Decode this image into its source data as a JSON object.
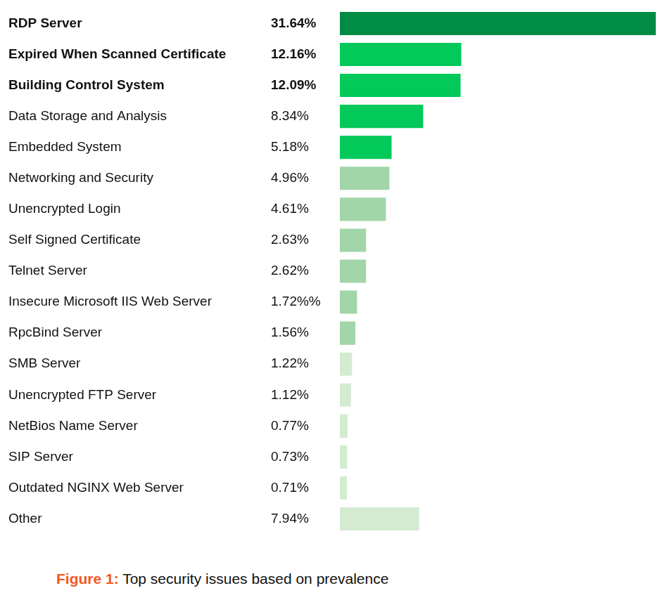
{
  "chart_data": {
    "type": "bar",
    "orientation": "horizontal",
    "title": "Top security issues based on prevalence",
    "figure_label": "Figure 1:",
    "categories": [
      "RDP Server",
      "Expired When Scanned Certificate",
      "Building Control System",
      "Data Storage and Analysis",
      "Embedded System",
      "Networking and Security",
      "Unencrypted Login",
      "Self Signed Certificate",
      "Telnet Server",
      "Insecure Microsoft IIS Web Server",
      "RpcBind Server",
      "SMB Server",
      "Unencrypted FTP Server",
      "NetBios Name Server",
      "SIP Server",
      "Outdated NGINX Web Server",
      "Other"
    ],
    "values": [
      31.64,
      12.16,
      12.09,
      8.34,
      5.18,
      4.96,
      4.61,
      2.63,
      2.62,
      1.72,
      1.56,
      1.22,
      1.12,
      0.77,
      0.73,
      0.71,
      7.94
    ],
    "value_labels": [
      "31.64%",
      "12.16%",
      "12.09%",
      "8.34%",
      "5.18%",
      "4.96%",
      "4.61%",
      "2.63%",
      "2.62%",
      "1.72%%",
      "1.56%",
      "1.22%",
      "1.12%",
      "0.77%",
      "0.73%",
      "0.71%",
      "7.94%"
    ],
    "colors": [
      "#008c45",
      "#03c85a",
      "#03c85a",
      "#03c85a",
      "#03c85a",
      "#a2d5a8",
      "#a2d5a8",
      "#a2d5a8",
      "#a2d5a8",
      "#a2d5a8",
      "#a2d5a8",
      "#d4ebd2",
      "#d4ebd2",
      "#d4ebd2",
      "#d4ebd2",
      "#d4ebd2",
      "#d4ebd2"
    ],
    "xlim": [
      0,
      31.64
    ],
    "data_labels": true,
    "tick_labels": "y",
    "grid": false,
    "legend": null
  }
}
